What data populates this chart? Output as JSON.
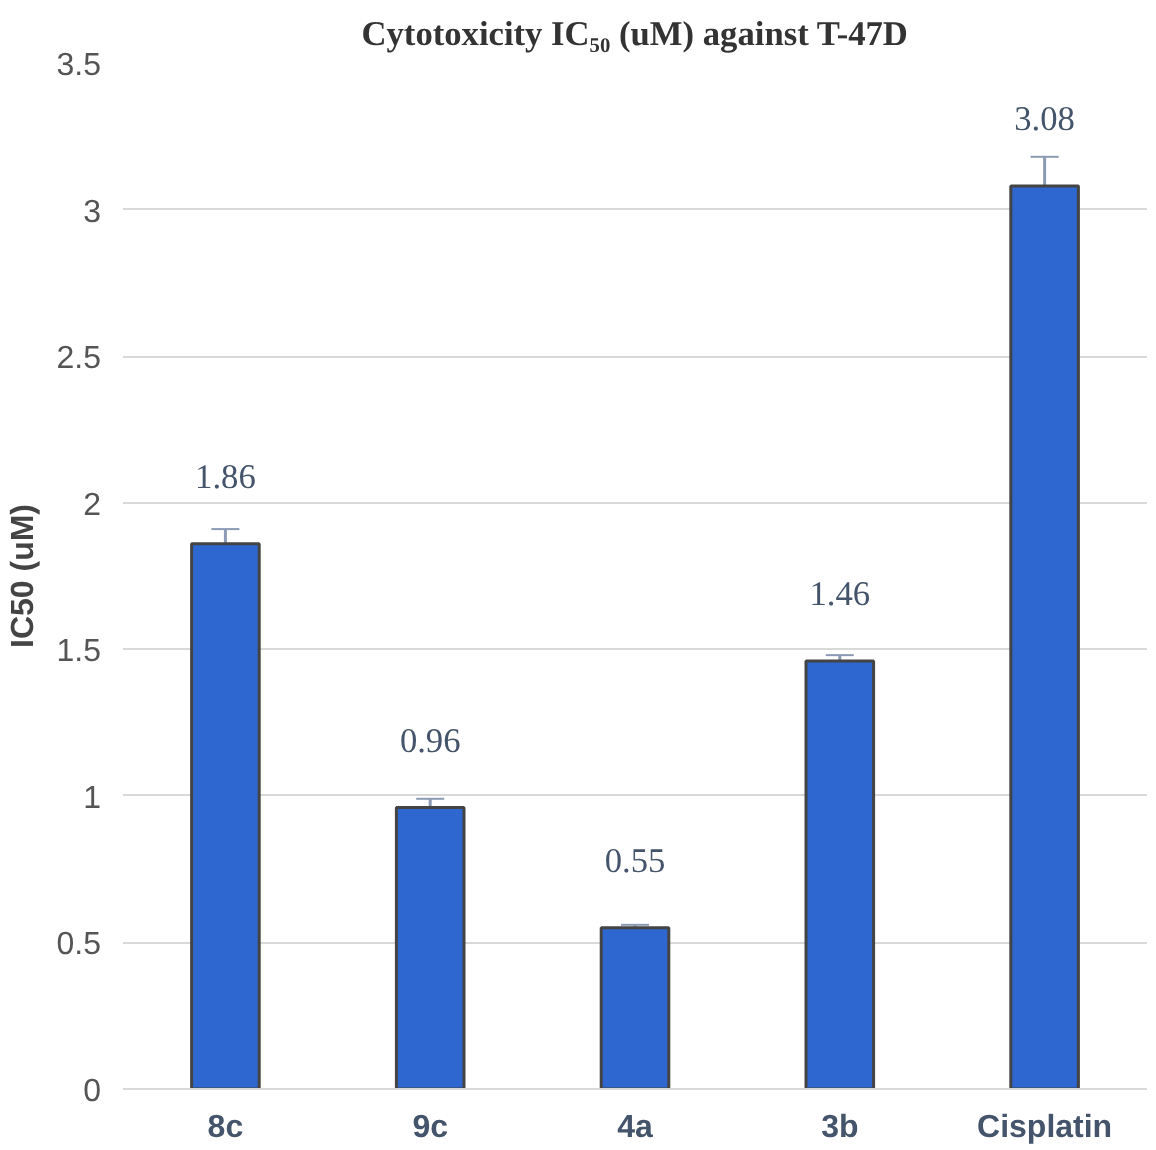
{
  "chart_data": {
    "type": "bar",
    "title": "Cytotoxicity IC₅₀ (uM) against T-47D",
    "ylabel": "IC50 (uM)",
    "categories": [
      "8c",
      "9c",
      "4a",
      "3b",
      "Cisplatin"
    ],
    "values": [
      1.86,
      0.96,
      0.55,
      1.46,
      3.08
    ],
    "errors": [
      0.05,
      0.03,
      0.01,
      0.02,
      0.1
    ],
    "color": "#2d67cf",
    "ylim": [
      0,
      3.5
    ],
    "yticks": [
      0,
      0.5,
      1,
      1.5,
      2,
      2.5,
      3,
      3.5
    ],
    "grid": "y",
    "data_labels": true
  }
}
